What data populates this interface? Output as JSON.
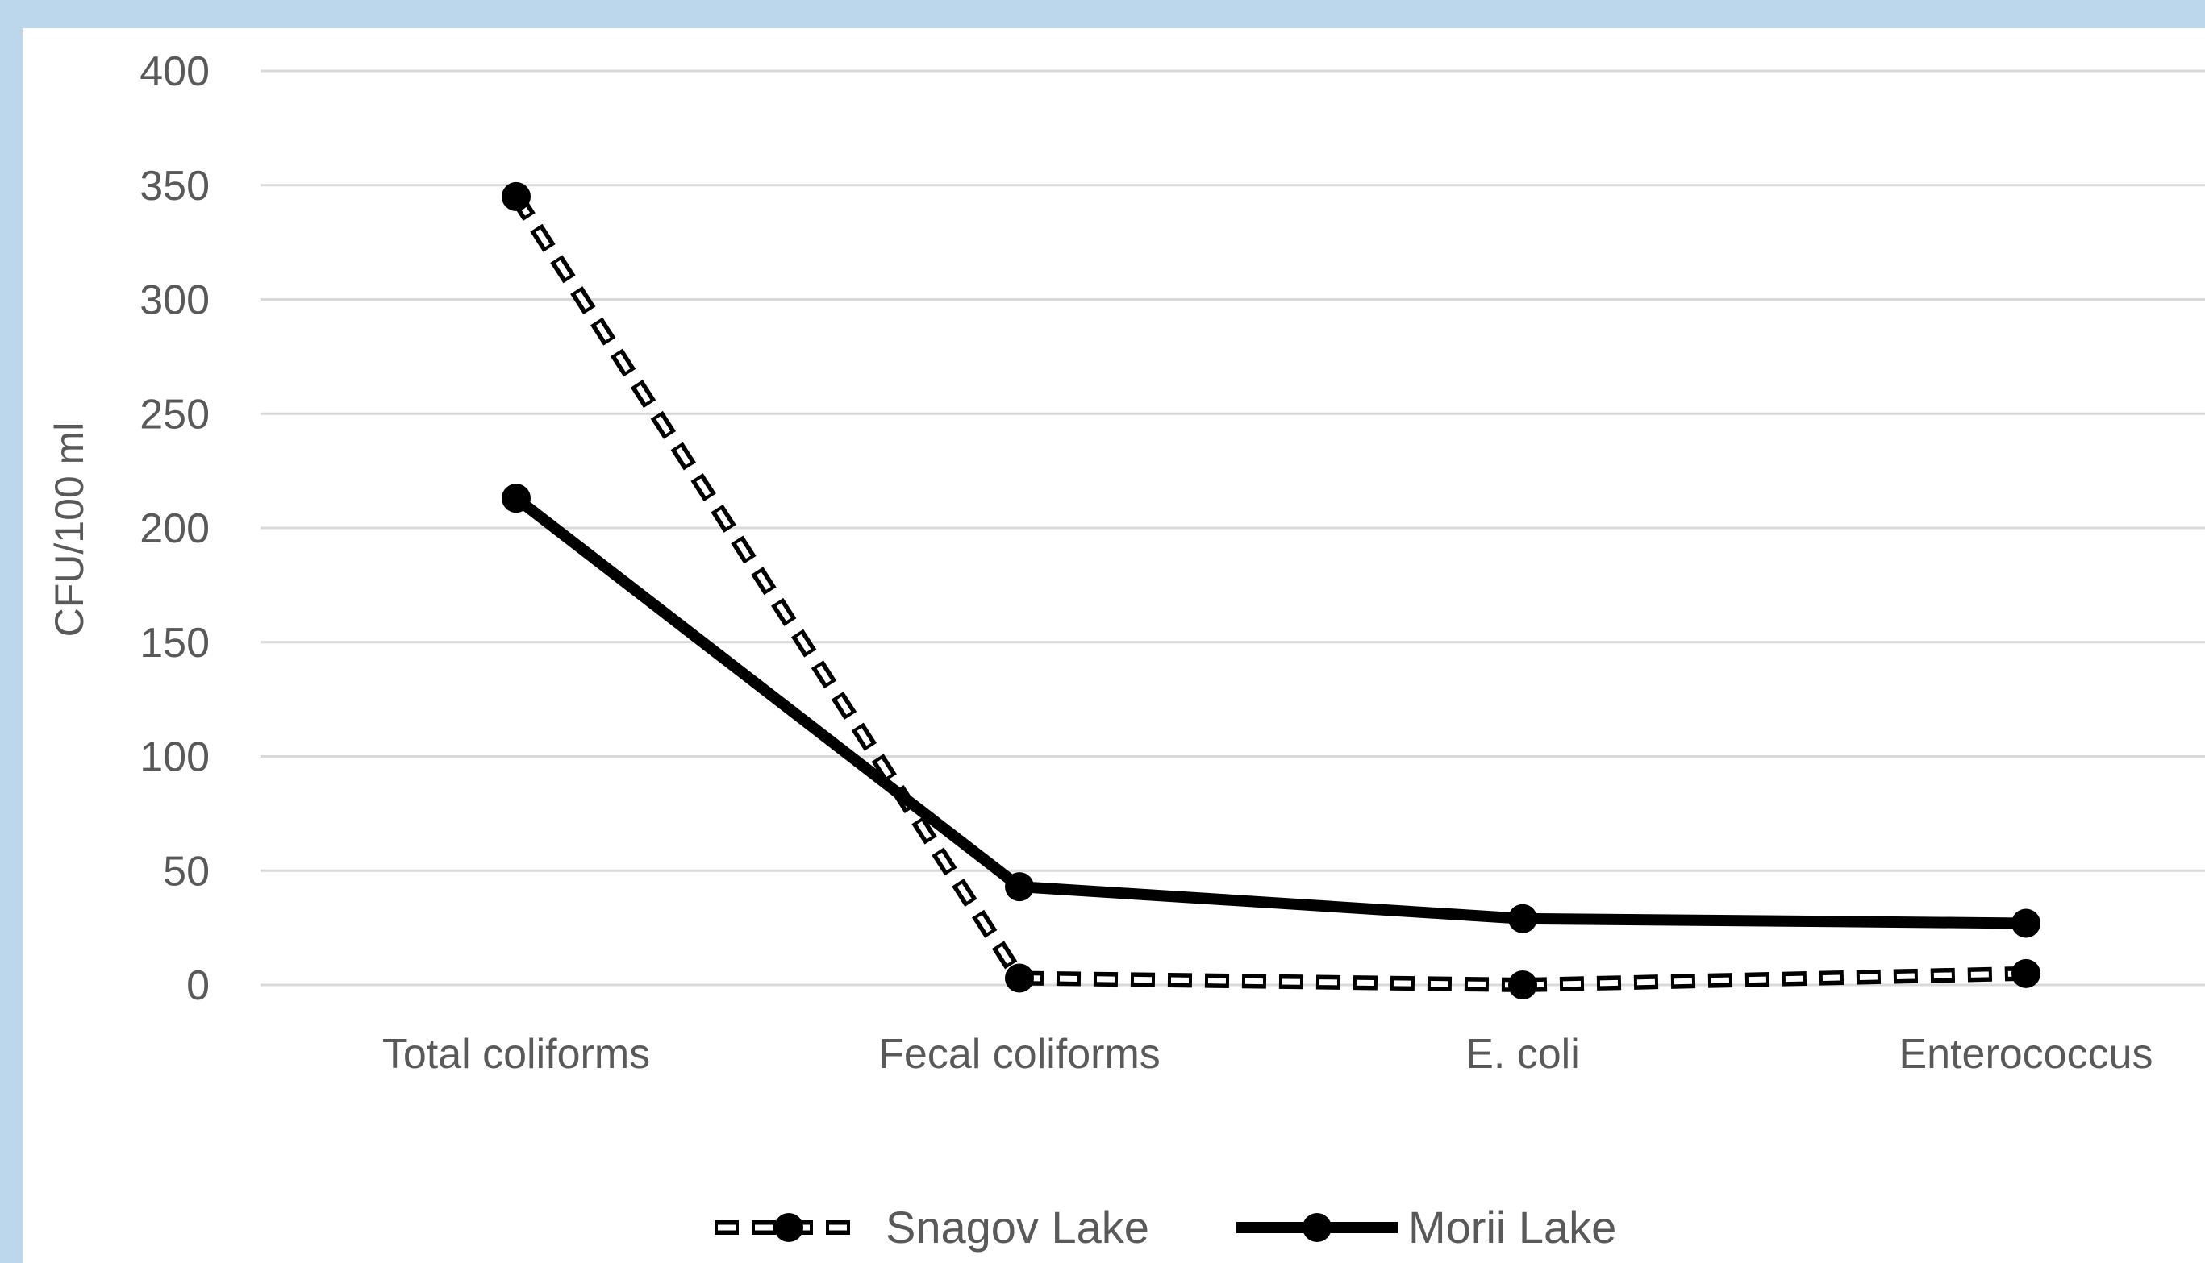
{
  "chart_data": {
    "type": "line",
    "categories": [
      "Total coliforms",
      "Fecal coliforms",
      "E. coli",
      "Enterococcus"
    ],
    "series": [
      {
        "name": "Snagov Lake",
        "values": [
          345,
          3,
          0,
          5
        ],
        "style": "dashed",
        "color": "#000000"
      },
      {
        "name": "Morii Lake",
        "values": [
          213,
          43,
          29,
          27
        ],
        "style": "solid",
        "color": "#000000"
      }
    ],
    "ylabel": "CFU/100 ml",
    "xlabel": "",
    "title": "",
    "ylim": [
      0,
      400
    ],
    "yticks": [
      "0",
      "50",
      "100",
      "150",
      "200",
      "250",
      "300",
      "350",
      "400"
    ],
    "grid": true,
    "legend_position": "bottom"
  },
  "colors": {
    "background": "#bcd6ec",
    "plot_background": "#ffffff",
    "gridline": "#d9d9d9",
    "text": "#595959",
    "line": "#000000"
  }
}
